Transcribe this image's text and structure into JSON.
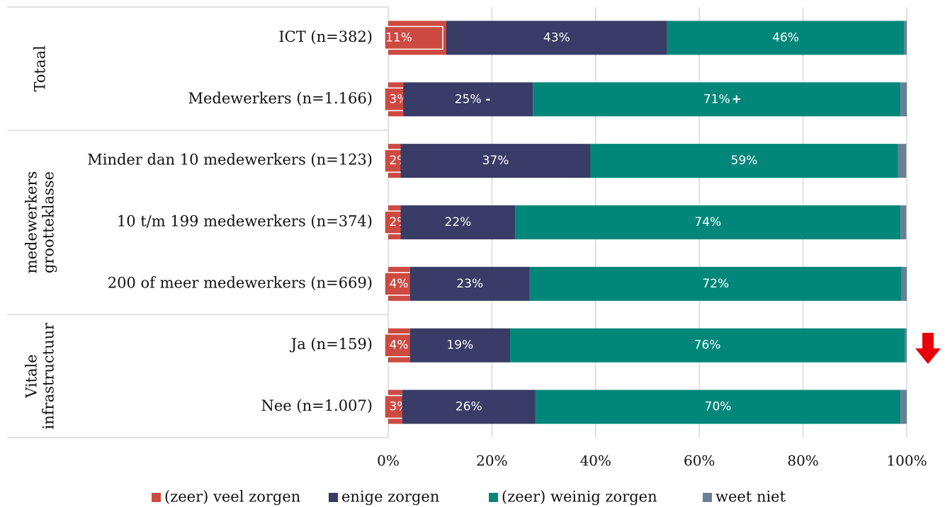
{
  "chart_data": {
    "type": "stacked-bar-horizontal",
    "categories": [
      "ICT (n=382)",
      "Medewerkers (n=1.166)",
      "Minder dan 10 medewerkers (n=123)",
      "10 t/m 199 medewerkers (n=374)",
      "200 of meer medewerkers (n=669)",
      "Ja (n=159)",
      "Nee (n=1.007)"
    ],
    "groups": [
      {
        "label": [
          "Totaal"
        ]
      },
      {
        "label": [
          "medewerkers",
          "grootteklasse"
        ]
      },
      {
        "label": [
          "Vitale",
          "infrastructuur"
        ]
      }
    ],
    "series": [
      {
        "name": "(zeer) veel zorgen",
        "color": "#cd4a42",
        "values": [
          11.2,
          2.9,
          2.4,
          2.4,
          4.2,
          4.2,
          2.7
        ],
        "value_labels": [
          "11%",
          "3%",
          "2%",
          "2%",
          "4%",
          "4%",
          "3%"
        ],
        "significance_markers": [
          null,
          "-",
          null,
          null,
          null,
          null,
          null
        ]
      },
      {
        "name": "enige zorgen",
        "color": "#383c66",
        "values": [
          42.6,
          25.0,
          36.6,
          22.1,
          23.1,
          19.3,
          25.7
        ],
        "value_labels": [
          "43%",
          "25%",
          "37%",
          "22%",
          "23%",
          "19%",
          "26%"
        ],
        "significance_markers": [
          null,
          "-",
          null,
          null,
          null,
          null,
          null
        ]
      },
      {
        "name": "(zeer) weinig zorgen",
        "color": "#00877a",
        "values": [
          45.7,
          70.9,
          59.3,
          74.3,
          71.7,
          76.1,
          70.4
        ],
        "value_labels": [
          "46%",
          "71%",
          "59%",
          "74%",
          "72%",
          "76%",
          "70%"
        ],
        "significance_markers": [
          null,
          "+",
          null,
          null,
          null,
          null,
          null
        ]
      },
      {
        "name": "weet niet",
        "color": "#687f96",
        "values": [
          0.5,
          1.2,
          1.6,
          1.1,
          1.0,
          0.4,
          1.2
        ]
      }
    ],
    "xlim": [
      0,
      100
    ],
    "xticks": [
      {
        "value": 0,
        "label": "0%"
      },
      {
        "value": 20,
        "label": "20%"
      },
      {
        "value": 40,
        "label": "40%"
      },
      {
        "value": 60,
        "label": "60%"
      },
      {
        "value": 80,
        "label": "80%"
      },
      {
        "value": 100,
        "label": "100%"
      }
    ],
    "grid": true
  }
}
